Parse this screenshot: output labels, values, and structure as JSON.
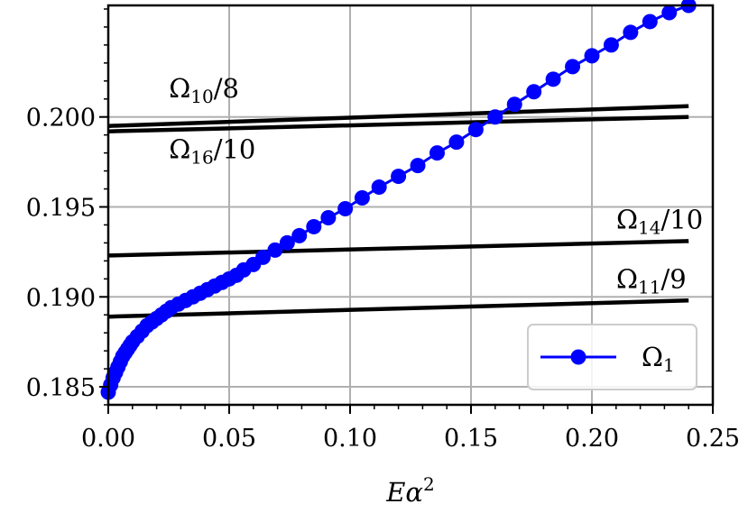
{
  "chart_data": {
    "type": "line",
    "title": "",
    "xlabel": "Eα²",
    "ylabel": "",
    "xlim": [
      0.0,
      0.25
    ],
    "ylim": [
      0.184,
      0.2062
    ],
    "grid": true,
    "legend_position": "bottom-right",
    "x_ticks": [
      "0.00",
      "0.05",
      "0.10",
      "0.15",
      "0.20",
      "0.25"
    ],
    "y_ticks": [
      "0.185",
      "0.190",
      "0.195",
      "0.200"
    ],
    "series": [
      {
        "name": "Ω₁",
        "color": "#0000ff",
        "style": "line-with-markers",
        "x": [
          0.0,
          0.001,
          0.002,
          0.003,
          0.004,
          0.005,
          0.006,
          0.007,
          0.008,
          0.009,
          0.01,
          0.012,
          0.014,
          0.016,
          0.018,
          0.02,
          0.022,
          0.024,
          0.026,
          0.029,
          0.032,
          0.035,
          0.038,
          0.041,
          0.044,
          0.047,
          0.05,
          0.053,
          0.056,
          0.06,
          0.064,
          0.069,
          0.074,
          0.079,
          0.085,
          0.091,
          0.098,
          0.105,
          0.112,
          0.12,
          0.128,
          0.136,
          0.144,
          0.152,
          0.16,
          0.168,
          0.176,
          0.184,
          0.192,
          0.2,
          0.208,
          0.216,
          0.224,
          0.232,
          0.24
        ],
        "y": [
          0.1847,
          0.1851,
          0.1855,
          0.1858,
          0.1861,
          0.1864,
          0.1867,
          0.1869,
          0.1871,
          0.1873,
          0.1875,
          0.1878,
          0.1881,
          0.1884,
          0.1886,
          0.1888,
          0.189,
          0.1892,
          0.1894,
          0.1896,
          0.1898,
          0.19,
          0.1902,
          0.1904,
          0.1906,
          0.1908,
          0.191,
          0.1912,
          0.1915,
          0.1918,
          0.1922,
          0.1926,
          0.193,
          0.1934,
          0.1939,
          0.1944,
          0.1949,
          0.1955,
          0.1961,
          0.1967,
          0.1973,
          0.198,
          0.1986,
          0.1993,
          0.2,
          0.2007,
          0.2014,
          0.2021,
          0.2028,
          0.2034,
          0.204,
          0.2047,
          0.2053,
          0.2058,
          0.2062
        ]
      },
      {
        "name": "Ω10/8",
        "color": "#000000",
        "style": "line",
        "x": [
          0.0,
          0.24
        ],
        "y": [
          0.1995,
          0.2006
        ]
      },
      {
        "name": "Ω16/10",
        "color": "#000000",
        "style": "line",
        "x": [
          0.0,
          0.24
        ],
        "y": [
          0.1992,
          0.2
        ]
      },
      {
        "name": "Ω14/10",
        "color": "#000000",
        "style": "line",
        "x": [
          0.0,
          0.24
        ],
        "y": [
          0.1923,
          0.1931
        ]
      },
      {
        "name": "Ω11/9",
        "color": "#000000",
        "style": "line",
        "x": [
          0.0,
          0.24
        ],
        "y": [
          0.1889,
          0.1898
        ]
      }
    ],
    "annotations": [
      {
        "base": "Ω",
        "sub": "10",
        "suffix": "/8",
        "x": 0.015,
        "y": 0.2011
      },
      {
        "base": "Ω",
        "sub": "16",
        "suffix": "/10",
        "x": 0.015,
        "y": 0.1977
      },
      {
        "base": "Ω",
        "sub": "14",
        "suffix": "/10",
        "x": 0.2,
        "y": 0.1938
      },
      {
        "base": "Ω",
        "sub": "11",
        "suffix": "/9",
        "x": 0.2,
        "y": 0.1905
      }
    ],
    "legend": {
      "label_base": "Ω",
      "label_sub": "1"
    }
  }
}
